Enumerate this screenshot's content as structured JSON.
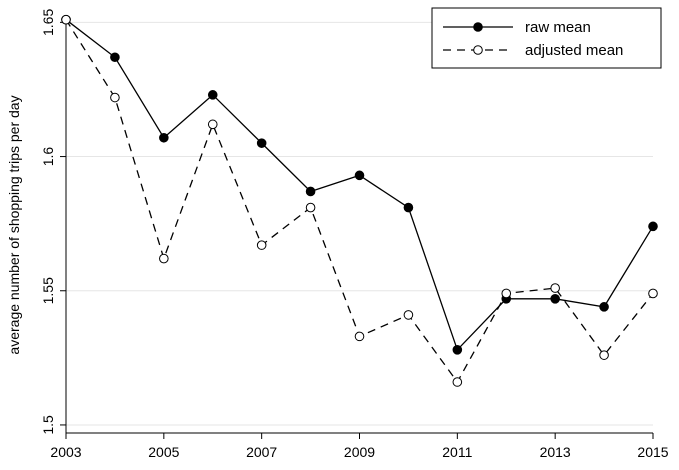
{
  "chart_data": {
    "type": "line",
    "title": "",
    "xlabel": "",
    "ylabel": "average number of shopping trips per day",
    "x": [
      2003,
      2004,
      2005,
      2006,
      2007,
      2008,
      2009,
      2010,
      2011,
      2012,
      2013,
      2014,
      2015
    ],
    "xticks": [
      "2003",
      "2005",
      "2007",
      "2009",
      "2011",
      "2013",
      "2015"
    ],
    "yticks": [
      "1.5",
      "1.55",
      "1.6",
      "1.65"
    ],
    "ylim": [
      1.497,
      1.652
    ],
    "xlim": [
      2003,
      2015
    ],
    "grid": "horizontal",
    "legend_position": "top-right",
    "series": [
      {
        "name": "raw mean",
        "style": "solid",
        "marker": "filled-circle",
        "color": "#000000",
        "values": [
          1.651,
          1.637,
          1.607,
          1.623,
          1.605,
          1.587,
          1.593,
          1.581,
          1.528,
          1.547,
          1.547,
          1.544,
          1.574
        ]
      },
      {
        "name": "adjusted mean",
        "style": "dashed",
        "marker": "hollow-circle",
        "color": "#000000",
        "values": [
          1.651,
          1.622,
          1.562,
          1.612,
          1.567,
          1.581,
          1.533,
          1.541,
          1.516,
          1.549,
          1.551,
          1.526,
          1.549
        ]
      }
    ]
  }
}
